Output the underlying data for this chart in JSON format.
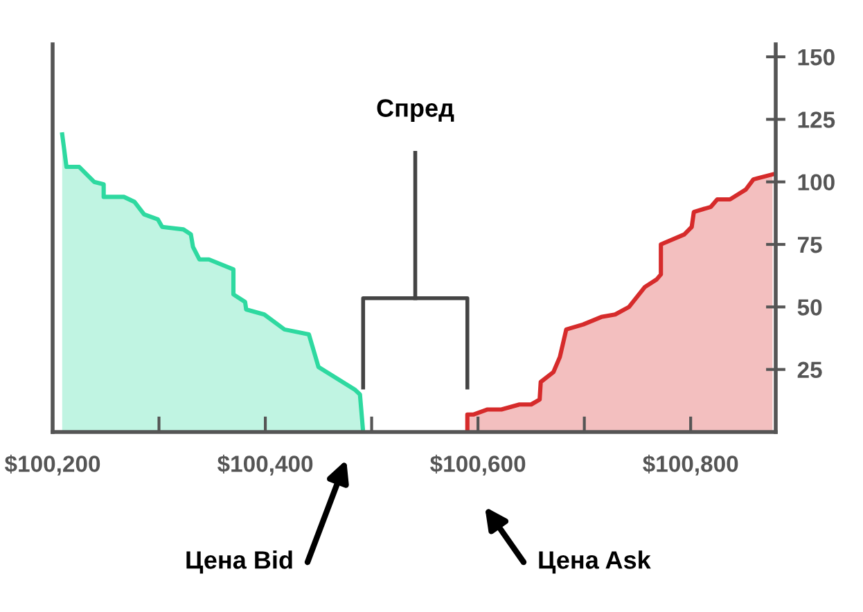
{
  "chart_data": {
    "type": "area",
    "series": [
      {
        "color": "#2ed9a0",
        "x": [
          100209,
          100213,
          100225,
          100239,
          100248,
          100248,
          100267,
          100277,
          100286,
          100299,
          100303,
          100323,
          100330,
          100332,
          100338,
          100347,
          100370,
          100370,
          100381,
          100382,
          100399,
          100418,
          100441,
          100450,
          100484,
          100489,
          100492
        ],
        "values": [
          119,
          106,
          106,
          100,
          99,
          94,
          94,
          92,
          87,
          85,
          82,
          81,
          79,
          74,
          69,
          69,
          65,
          55,
          52,
          49,
          47,
          41,
          39,
          26,
          17,
          15,
          0
        ]
      },
      {
        "color": "#d62b2b",
        "x": [
          100590,
          100590,
          100596,
          100609,
          100622,
          100639,
          100650,
          100658,
          100659,
          100671,
          100677,
          100683,
          100699,
          100716,
          100729,
          100742,
          100757,
          100768,
          100772,
          100772,
          100794,
          100801,
          100803,
          100819,
          100825,
          100837,
          100852,
          100859,
          100877
        ],
        "values": [
          0,
          7,
          7,
          9,
          9,
          11,
          11,
          13,
          20,
          24,
          30,
          41,
          43,
          46,
          47,
          50,
          58,
          61,
          63,
          75,
          79,
          82,
          88,
          90,
          93,
          93,
          97,
          101,
          103
        ]
      }
    ],
    "xlim": [
      100200,
      100880
    ],
    "xticks": [
      {
        "value": 100200,
        "label": "$100,200"
      },
      {
        "value": 100300,
        "label": null
      },
      {
        "value": 100400,
        "label": "$100,400"
      },
      {
        "value": 100500,
        "label": null
      },
      {
        "value": 100600,
        "label": "$100,600"
      },
      {
        "value": 100700,
        "label": null
      },
      {
        "value": 100800,
        "label": "$100,800"
      }
    ],
    "ylim": [
      0,
      155
    ],
    "yticks": [
      {
        "value": 25,
        "label": "25"
      },
      {
        "value": 50,
        "label": "50"
      },
      {
        "value": 75,
        "label": "75"
      },
      {
        "value": 100,
        "label": "100"
      },
      {
        "value": 125,
        "label": "125"
      },
      {
        "value": 150,
        "label": "150"
      }
    ],
    "annotations": [
      "Спред",
      "Цена Bid",
      "Цена Ask"
    ],
    "grid": false,
    "legend": false
  }
}
